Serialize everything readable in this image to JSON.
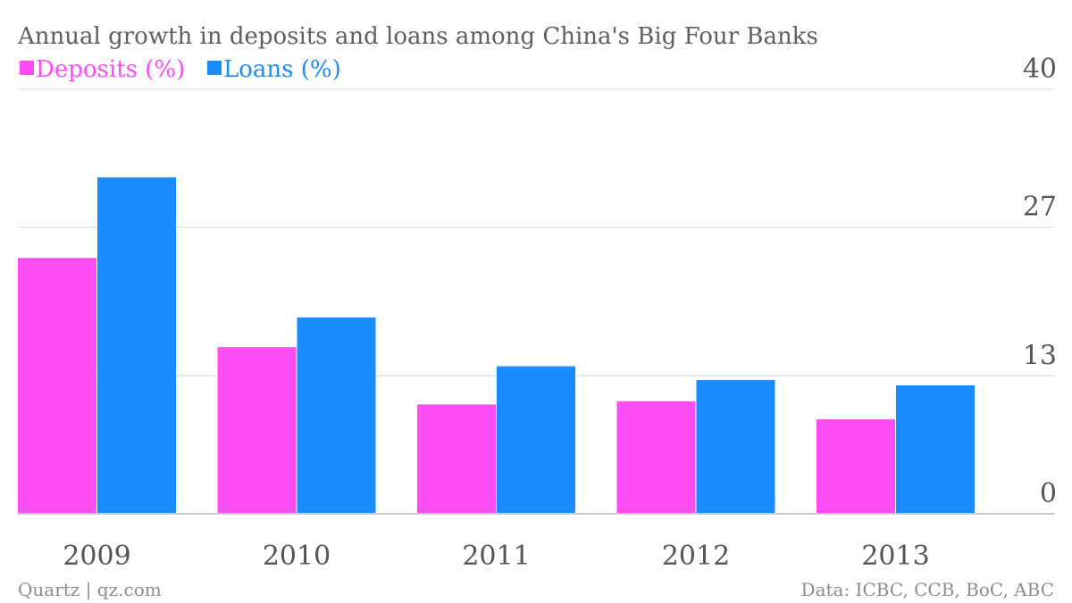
{
  "chart_data": {
    "type": "bar",
    "title": "Annual growth in deposits and loans among China's Big Four Banks",
    "categories": [
      "2009",
      "2010",
      "2011",
      "2012",
      "2013"
    ],
    "series": [
      {
        "name": "Deposits (%)",
        "color": "#ff4cf5",
        "values": [
          24.1,
          15.7,
          10.3,
          10.6,
          8.9
        ]
      },
      {
        "name": "Loans (%)",
        "color": "#1a8cff",
        "values": [
          31.7,
          18.5,
          13.9,
          12.6,
          12.1
        ]
      }
    ],
    "ylim": [
      0,
      40
    ],
    "y_ticks": [
      "0",
      "13",
      "27",
      "40"
    ],
    "y_axis_side": "right",
    "grid": true,
    "legend_position": "top-left",
    "xlabel": "",
    "ylabel": ""
  },
  "footer": {
    "source_left": "Quartz | qz.com",
    "source_right": "Data: ICBC, CCB, BoC, ABC"
  }
}
